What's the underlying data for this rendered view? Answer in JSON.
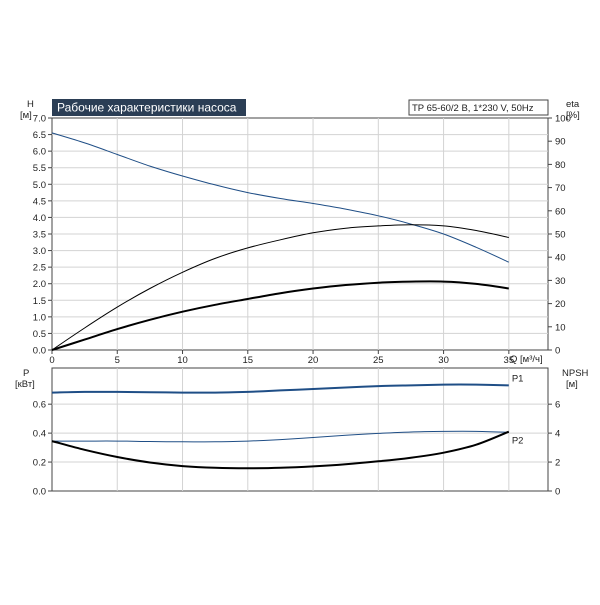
{
  "colors": {
    "blue": "#1f4e86",
    "black": "#000000",
    "grid": "#d3d3d3",
    "title_bg": "#2b3e55"
  },
  "header": {
    "title": "Рабочие характеристики насоса",
    "info": "TP 65-60/2 B, 1*230 V, 50Hz"
  },
  "chart_data": [
    {
      "type": "line",
      "panel": "top",
      "grid": true,
      "xlabel": "Q [м³/ч]",
      "xlim": [
        0,
        38
      ],
      "xticks": [
        "0",
        "5",
        "10",
        "15",
        "20",
        "25",
        "30",
        "35"
      ],
      "ylabel_left": "H",
      "ylabel_left_unit": "[м]",
      "ylim_left": [
        0,
        7.0
      ],
      "yticks_left": [
        "0.0",
        "0.5",
        "1.0",
        "1.5",
        "2.0",
        "2.5",
        "3.0",
        "3.5",
        "4.0",
        "4.5",
        "5.0",
        "5.5",
        "6.0",
        "6.5",
        "7.0"
      ],
      "ylabel_right": "eta",
      "ylabel_right_unit": "[%]",
      "ylim_right": [
        0,
        100
      ],
      "yticks_right": [
        "0",
        "10",
        "20",
        "30",
        "40",
        "50",
        "60",
        "70",
        "80",
        "90",
        "100"
      ],
      "series": [
        {
          "axis": "left",
          "color": "#1f4e86",
          "x": [
            0,
            2.5,
            5,
            7.5,
            10,
            12.5,
            15,
            17.5,
            20,
            22.5,
            25,
            27.5,
            30,
            32.5,
            35
          ],
          "y": [
            6.55,
            6.25,
            5.9,
            5.55,
            5.25,
            4.98,
            4.75,
            4.57,
            4.42,
            4.25,
            4.05,
            3.8,
            3.5,
            3.1,
            2.65
          ]
        },
        {
          "axis": "right",
          "color": "#000000",
          "x": [
            0,
            2.5,
            5,
            7.5,
            10,
            12.5,
            15,
            17.5,
            20,
            22.5,
            25,
            27.5,
            30,
            32.5,
            35
          ],
          "y": [
            0,
            9.5,
            18.5,
            26.5,
            33.5,
            39.5,
            44,
            47.5,
            50.5,
            52.5,
            53.5,
            54,
            53.5,
            51.5,
            48.5
          ]
        },
        {
          "axis": "right",
          "color": "#000000",
          "width": 2,
          "x": [
            0,
            2.5,
            5,
            7.5,
            10,
            12.5,
            15,
            17.5,
            20,
            22.5,
            25,
            27.5,
            30,
            32.5,
            35
          ],
          "y": [
            0,
            4.5,
            9,
            13,
            16.5,
            19.5,
            22,
            24.5,
            26.5,
            28,
            29,
            29.5,
            29.5,
            28.5,
            26.5
          ]
        }
      ]
    },
    {
      "type": "line",
      "panel": "bottom",
      "grid": true,
      "xlim": [
        0,
        38
      ],
      "ylabel_left": "P",
      "ylabel_left_unit": "[кВт]",
      "ylim_left": [
        0,
        0.85
      ],
      "yticks_left": [
        "0.0",
        "0.2",
        "0.4",
        "0.6"
      ],
      "ylabel_right": "NPSH",
      "ylabel_right_unit": "[м]",
      "ylim_right": [
        0,
        8.5
      ],
      "yticks_right": [
        "0",
        "2",
        "4",
        "6"
      ],
      "series": [
        {
          "name": "P1",
          "axis": "left",
          "color": "#1f4e86",
          "width": 2,
          "x": [
            0,
            2.5,
            5,
            7.5,
            10,
            12.5,
            15,
            17.5,
            20,
            22.5,
            25,
            27.5,
            30,
            32.5,
            35
          ],
          "y": [
            0.68,
            0.685,
            0.685,
            0.683,
            0.68,
            0.68,
            0.685,
            0.695,
            0.705,
            0.715,
            0.725,
            0.73,
            0.735,
            0.735,
            0.73
          ]
        },
        {
          "name": "P2",
          "axis": "left",
          "color": "#1f4e86",
          "x": [
            0,
            2.5,
            5,
            7.5,
            10,
            12.5,
            15,
            17.5,
            20,
            22.5,
            25,
            27.5,
            30,
            32.5,
            35
          ],
          "y": [
            0.345,
            0.345,
            0.345,
            0.342,
            0.34,
            0.34,
            0.345,
            0.355,
            0.37,
            0.385,
            0.398,
            0.408,
            0.412,
            0.412,
            0.405
          ]
        },
        {
          "axis": "right",
          "color": "#000000",
          "width": 2,
          "x": [
            0,
            2.5,
            5,
            7.5,
            10,
            12.5,
            15,
            17.5,
            20,
            22.5,
            25,
            27.5,
            30,
            32.5,
            35
          ],
          "y": [
            3.45,
            2.85,
            2.35,
            1.97,
            1.72,
            1.6,
            1.57,
            1.6,
            1.7,
            1.85,
            2.05,
            2.3,
            2.65,
            3.2,
            4.1
          ]
        }
      ]
    }
  ]
}
